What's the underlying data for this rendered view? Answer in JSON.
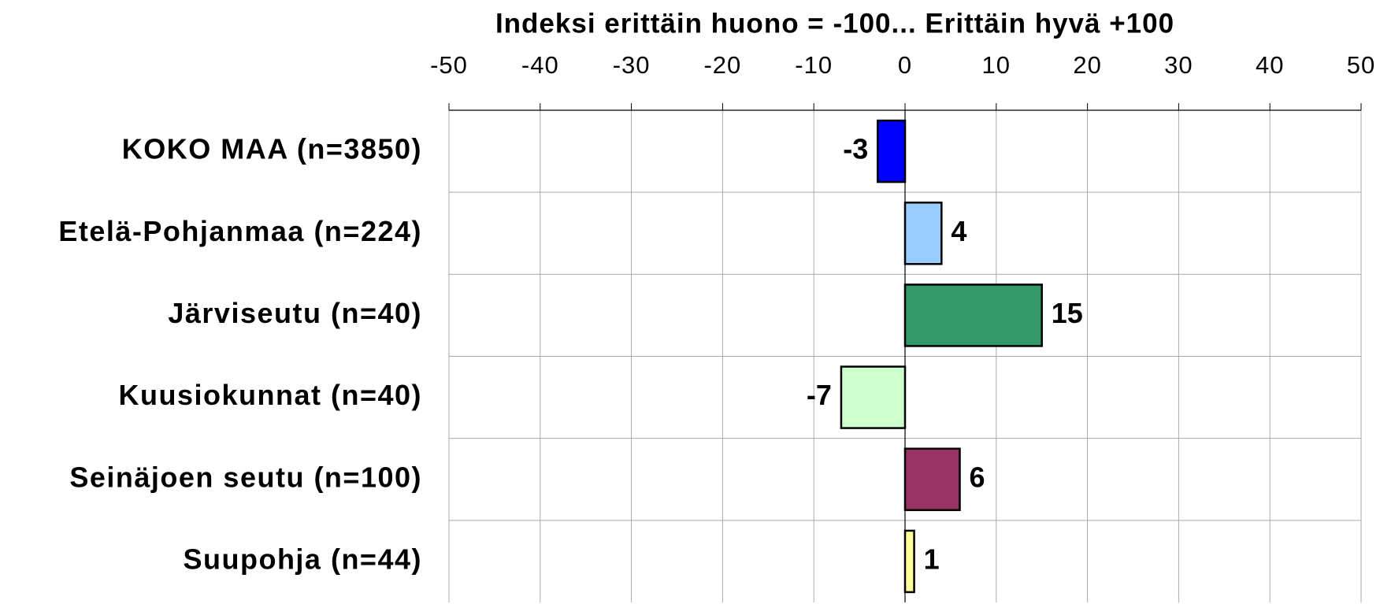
{
  "chart_data": {
    "type": "bar",
    "orientation": "horizontal",
    "title": "Indeksi erittäin huono = -100... Erittäin hyvä +100",
    "categories": [
      "KOKO MAA (n=3850)",
      "Etelä-Pohjanmaa (n=224)",
      "Järviseutu (n=40)",
      "Kuusiokunnat (n=40)",
      "Seinäjoen seutu (n=100)",
      "Suupohja (n=44)"
    ],
    "values": [
      -3,
      4,
      15,
      -7,
      6,
      1
    ],
    "colors": [
      "#0000ff",
      "#99ccff",
      "#339966",
      "#ccffcc",
      "#993366",
      "#ffff99"
    ],
    "xlim": [
      -50,
      50
    ],
    "xticks": [
      -50,
      -40,
      -30,
      -20,
      -10,
      0,
      10,
      20,
      30,
      40,
      50
    ],
    "grid": true
  }
}
